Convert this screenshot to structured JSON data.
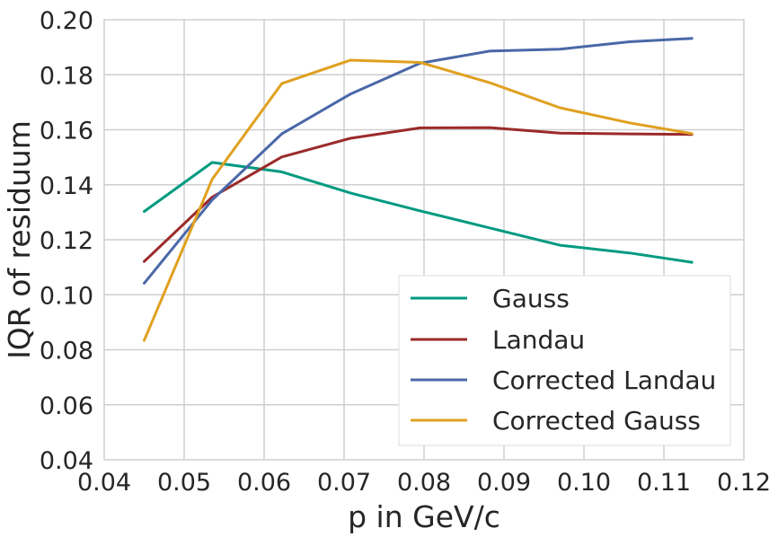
{
  "chart_data": {
    "type": "line",
    "xlabel": "p in GeV/c",
    "ylabel": "IQR of residuum",
    "xlim": [
      0.04,
      0.12
    ],
    "ylim": [
      0.04,
      0.2
    ],
    "xticks": [
      "0.04",
      "0.05",
      "0.06",
      "0.07",
      "0.08",
      "0.09",
      "0.10",
      "0.11",
      "0.12"
    ],
    "yticks": [
      "0.04",
      "0.06",
      "0.08",
      "0.10",
      "0.12",
      "0.14",
      "0.16",
      "0.18",
      "0.20"
    ],
    "grid": true,
    "legend_position": "lower-right",
    "series": [
      {
        "name": "Gauss",
        "color": "#009a80",
        "x": [
          0.045,
          0.0535,
          0.0622,
          0.0708,
          0.0795,
          0.0882,
          0.097,
          0.1057,
          0.1135
        ],
        "y": [
          0.1303,
          0.1481,
          0.1447,
          0.137,
          0.1305,
          0.1243,
          0.118,
          0.1152,
          0.1118
        ]
      },
      {
        "name": "Landau",
        "color": "#9b2a2a",
        "x": [
          0.045,
          0.0535,
          0.0622,
          0.0708,
          0.0795,
          0.0882,
          0.097,
          0.1057,
          0.1135
        ],
        "y": [
          0.1121,
          0.1355,
          0.1501,
          0.1569,
          0.1607,
          0.1608,
          0.1588,
          0.1585,
          0.1583
        ]
      },
      {
        "name": "Corrected Landau",
        "color": "#4a68a8",
        "x": [
          0.045,
          0.0535,
          0.0622,
          0.0708,
          0.0795,
          0.0882,
          0.097,
          0.1057,
          0.1135
        ],
        "y": [
          0.1042,
          0.1345,
          0.1585,
          0.173,
          0.1842,
          0.1886,
          0.1893,
          0.192,
          0.1932
        ]
      },
      {
        "name": "Corrected Gauss",
        "color": "#e0a020",
        "x": [
          0.045,
          0.0535,
          0.0622,
          0.0708,
          0.0795,
          0.0882,
          0.097,
          0.1057,
          0.1135
        ],
        "y": [
          0.0834,
          0.142,
          0.1768,
          0.1853,
          0.1845,
          0.1771,
          0.168,
          0.1625,
          0.1586
        ]
      }
    ]
  }
}
